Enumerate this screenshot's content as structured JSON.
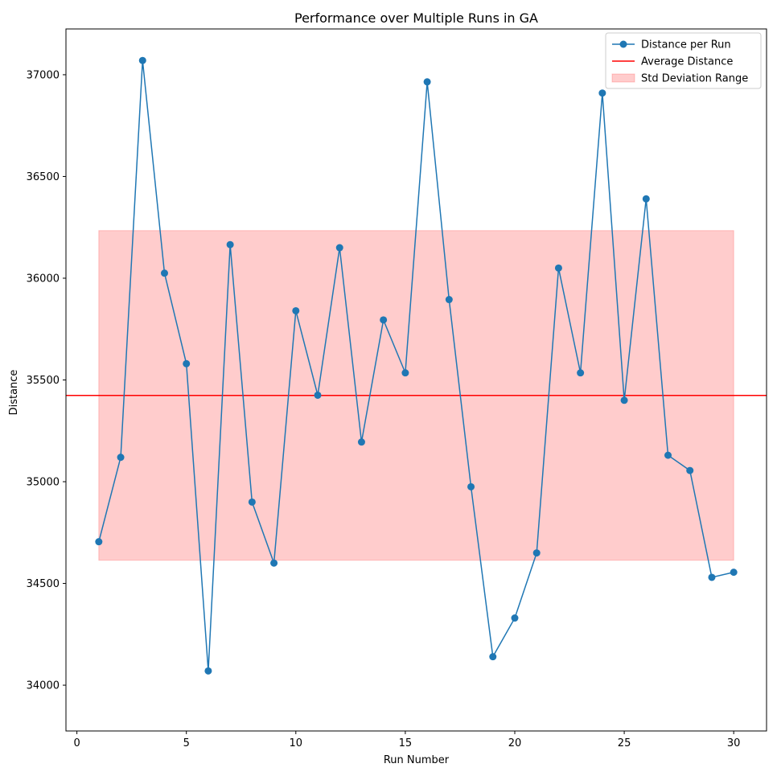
{
  "chart_data": {
    "type": "line",
    "title": "Performance over Multiple Runs in GA",
    "xlabel": "Run Number",
    "ylabel": "Distance",
    "xlim": [
      -0.5,
      31.5
    ],
    "ylim": [
      33775,
      37225
    ],
    "x_ticks": [
      0,
      5,
      10,
      15,
      20,
      25,
      30
    ],
    "y_ticks": [
      34000,
      34500,
      35000,
      35500,
      36000,
      36500,
      37000
    ],
    "grid": false,
    "legend_position": "top-right",
    "series": [
      {
        "name": "Distance per Run",
        "color": "#1f77b4",
        "marker": "circle",
        "x": [
          1,
          2,
          3,
          4,
          5,
          6,
          7,
          8,
          9,
          10,
          11,
          12,
          13,
          14,
          15,
          16,
          17,
          18,
          19,
          20,
          21,
          22,
          23,
          24,
          25,
          26,
          27,
          28,
          29,
          30
        ],
        "values": [
          34705,
          35120,
          37070,
          36025,
          35580,
          34070,
          36165,
          34900,
          34600,
          35840,
          35425,
          36150,
          35195,
          35795,
          35535,
          36965,
          35895,
          34975,
          34140,
          34330,
          34650,
          36050,
          35535,
          36910,
          35400,
          36390,
          35130,
          35055,
          34530,
          34555
        ]
      }
    ],
    "average": {
      "name": "Average Distance",
      "value": 35424,
      "color": "#ff0000"
    },
    "std_band": {
      "name": "Std Deviation Range",
      "lower": 34614,
      "upper": 36234,
      "x_range": [
        1,
        30
      ],
      "color": "#ff0000",
      "opacity": 0.2
    }
  }
}
